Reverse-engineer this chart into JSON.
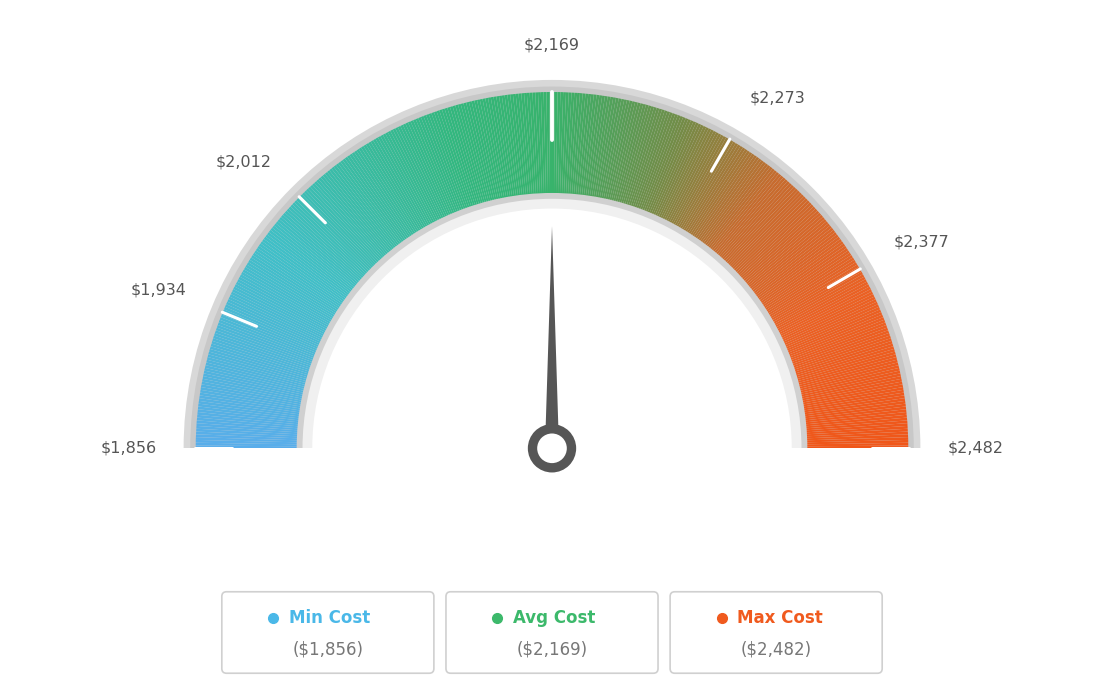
{
  "min_val": 1856,
  "avg_val": 2169,
  "max_val": 2482,
  "tick_labels": [
    "$1,856",
    "$1,934",
    "$2,012",
    "$2,169",
    "$2,273",
    "$2,377",
    "$2,482"
  ],
  "tick_values": [
    1856,
    1934,
    2012,
    2169,
    2273,
    2377,
    2482
  ],
  "legend_items": [
    {
      "label": "Min Cost",
      "value": "($1,856)",
      "color": "#4ab8e8"
    },
    {
      "label": "Avg Cost",
      "value": "($2,169)",
      "color": "#3cb96b"
    },
    {
      "label": "Max Cost",
      "value": "($2,482)",
      "color": "#f05a1e"
    }
  ],
  "color_stops": [
    [
      0.0,
      [
        0.35,
        0.68,
        0.92
      ]
    ],
    [
      0.2,
      [
        0.25,
        0.75,
        0.78
      ]
    ],
    [
      0.4,
      [
        0.2,
        0.72,
        0.5
      ]
    ],
    [
      0.5,
      [
        0.22,
        0.7,
        0.42
      ]
    ],
    [
      0.62,
      [
        0.45,
        0.55,
        0.28
      ]
    ],
    [
      0.72,
      [
        0.78,
        0.42,
        0.18
      ]
    ],
    [
      0.85,
      [
        0.92,
        0.38,
        0.14
      ]
    ],
    [
      1.0,
      [
        0.94,
        0.34,
        0.1
      ]
    ]
  ],
  "background_color": "#ffffff"
}
